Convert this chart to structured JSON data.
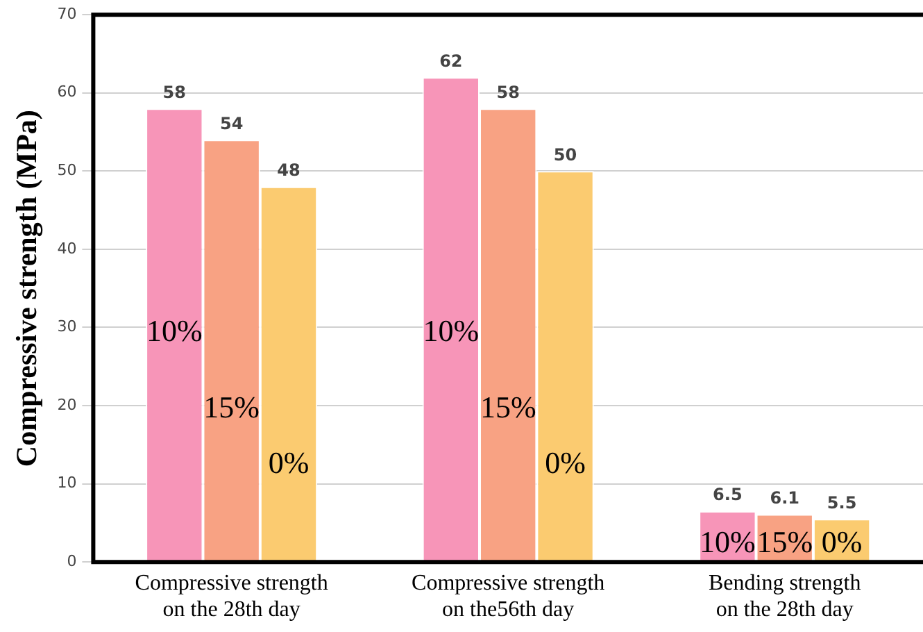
{
  "chart_data": {
    "type": "bar",
    "ylabel": "Compressive strength (MPa)",
    "categories": [
      "Compressive strength on the 28th day",
      "Compressive strength on the56th day",
      "Bending strength on the 28th day"
    ],
    "series": [
      {
        "name": "10%",
        "color": "#f795b8",
        "values": [
          58,
          62,
          6.5
        ]
      },
      {
        "name": "15%",
        "color": "#f8a283",
        "values": [
          54,
          58,
          6.1
        ]
      },
      {
        "name": "0%",
        "color": "#fbcb70",
        "values": [
          48,
          50,
          5.5
        ]
      }
    ],
    "ylim": [
      0,
      70
    ],
    "yticks": [
      0,
      10,
      20,
      30,
      40,
      50,
      60,
      70
    ],
    "grid": "y",
    "legend": false,
    "data_labels": true
  }
}
